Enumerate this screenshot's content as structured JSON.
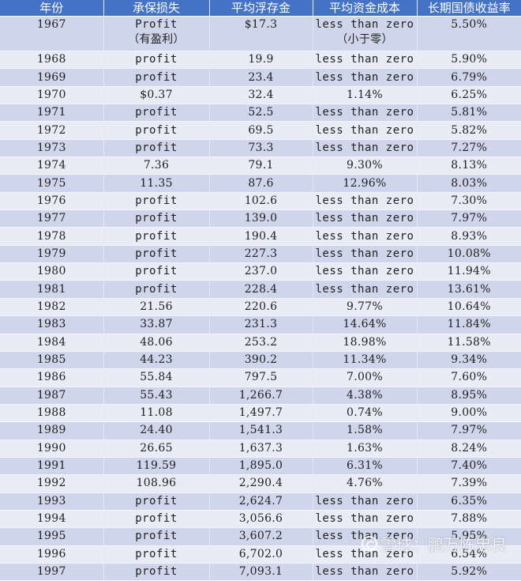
{
  "table": {
    "headers": [
      "年份",
      "承保损失",
      "平均浮存金",
      "平均资金成本",
      "长期国债收益率"
    ],
    "first_row": {
      "year": "1967",
      "underwriting_loss": "Profit",
      "underwriting_loss_note": "（有盈利）",
      "avg_float": "$17.3",
      "cost_of_funds": "less than zero",
      "cost_of_funds_note": "（小于零）",
      "treasury_yield": "5.50%"
    },
    "rows": [
      {
        "year": "1968",
        "underwriting_loss": "profit",
        "avg_float": "19.9",
        "cost_of_funds": "less than zero",
        "treasury_yield": "5.90%"
      },
      {
        "year": "1969",
        "underwriting_loss": "profit",
        "avg_float": "23.4",
        "cost_of_funds": "less than zero",
        "treasury_yield": "6.79%"
      },
      {
        "year": "1970",
        "underwriting_loss": "$0.37",
        "avg_float": "32.4",
        "cost_of_funds": "1.14%",
        "treasury_yield": "6.25%"
      },
      {
        "year": "1971",
        "underwriting_loss": "profit",
        "avg_float": "52.5",
        "cost_of_funds": "less than zero",
        "treasury_yield": "5.81%"
      },
      {
        "year": "1972",
        "underwriting_loss": "profit",
        "avg_float": "69.5",
        "cost_of_funds": "less than zero",
        "treasury_yield": "5.82%"
      },
      {
        "year": "1973",
        "underwriting_loss": "profit",
        "avg_float": "73.3",
        "cost_of_funds": "less than zero",
        "treasury_yield": "7.27%"
      },
      {
        "year": "1974",
        "underwriting_loss": "7.36",
        "avg_float": "79.1",
        "cost_of_funds": "9.30%",
        "treasury_yield": "8.13%"
      },
      {
        "year": "1975",
        "underwriting_loss": "11.35",
        "avg_float": "87.6",
        "cost_of_funds": "12.96%",
        "treasury_yield": "8.03%"
      },
      {
        "year": "1976",
        "underwriting_loss": "profit",
        "avg_float": "102.6",
        "cost_of_funds": "less than zero",
        "treasury_yield": "7.30%"
      },
      {
        "year": "1977",
        "underwriting_loss": "profit",
        "avg_float": "139.0",
        "cost_of_funds": "less than zero",
        "treasury_yield": "7.97%"
      },
      {
        "year": "1978",
        "underwriting_loss": "profit",
        "avg_float": "190.4",
        "cost_of_funds": "less than zero",
        "treasury_yield": "8.93%"
      },
      {
        "year": "1979",
        "underwriting_loss": "profit",
        "avg_float": "227.3",
        "cost_of_funds": "less than zero",
        "treasury_yield": "10.08%"
      },
      {
        "year": "1980",
        "underwriting_loss": "profit",
        "avg_float": "237.0",
        "cost_of_funds": "less than zero",
        "treasury_yield": "11.94%"
      },
      {
        "year": "1981",
        "underwriting_loss": "profit",
        "avg_float": "228.4",
        "cost_of_funds": "less than zero",
        "treasury_yield": "13.61%"
      },
      {
        "year": "1982",
        "underwriting_loss": "21.56",
        "avg_float": "220.6",
        "cost_of_funds": "9.77%",
        "treasury_yield": "10.64%"
      },
      {
        "year": "1983",
        "underwriting_loss": "33.87",
        "avg_float": "231.3",
        "cost_of_funds": "14.64%",
        "treasury_yield": "11.84%"
      },
      {
        "year": "1984",
        "underwriting_loss": "48.06",
        "avg_float": "253.2",
        "cost_of_funds": "18.98%",
        "treasury_yield": "11.58%"
      },
      {
        "year": "1985",
        "underwriting_loss": "44.23",
        "avg_float": "390.2",
        "cost_of_funds": "11.34%",
        "treasury_yield": "9.34%"
      },
      {
        "year": "1986",
        "underwriting_loss": "55.84",
        "avg_float": "797.5",
        "cost_of_funds": "7.00%",
        "treasury_yield": "7.60%"
      },
      {
        "year": "1987",
        "underwriting_loss": "55.43",
        "avg_float": "1,266.7",
        "cost_of_funds": "4.38%",
        "treasury_yield": "8.95%"
      },
      {
        "year": "1988",
        "underwriting_loss": "11.08",
        "avg_float": "1,497.7",
        "cost_of_funds": "0.74%",
        "treasury_yield": "9.00%"
      },
      {
        "year": "1989",
        "underwriting_loss": "24.40",
        "avg_float": "1,541.3",
        "cost_of_funds": "1.58%",
        "treasury_yield": "7.97%"
      },
      {
        "year": "1990",
        "underwriting_loss": "26.65",
        "avg_float": "1,637.3",
        "cost_of_funds": "1.63%",
        "treasury_yield": "8.24%"
      },
      {
        "year": "1991",
        "underwriting_loss": "119.59",
        "avg_float": "1,895.0",
        "cost_of_funds": "6.31%",
        "treasury_yield": "7.40%"
      },
      {
        "year": "1992",
        "underwriting_loss": "108.96",
        "avg_float": "2,290.4",
        "cost_of_funds": "4.76%",
        "treasury_yield": "7.39%"
      },
      {
        "year": "1993",
        "underwriting_loss": "profit",
        "avg_float": "2,624.7",
        "cost_of_funds": "less than zero",
        "treasury_yield": "6.35%"
      },
      {
        "year": "1994",
        "underwriting_loss": "profit",
        "avg_float": "3,056.6",
        "cost_of_funds": "less than zero",
        "treasury_yield": "7.88%"
      },
      {
        "year": "1995",
        "underwriting_loss": "profit",
        "avg_float": "3,607.2",
        "cost_of_funds": "less than zero",
        "treasury_yield": "5.95%"
      },
      {
        "year": "1996",
        "underwriting_loss": "profit",
        "avg_float": "6,702.0",
        "cost_of_funds": "less than zero",
        "treasury_yield": "6.54%"
      },
      {
        "year": "1997",
        "underwriting_loss": "profit",
        "avg_float": "7,093.1",
        "cost_of_funds": "less than zero",
        "treasury_yield": "5.92%"
      }
    ]
  },
  "watermark": {
    "text": "雪球：鹏万陈忠良",
    "icon": "xueqiu-logo-icon"
  },
  "colors": {
    "header_bg": "#4472c4",
    "header_text": "#ffffff",
    "row_odd_bg": "#cfd5ea",
    "row_even_bg": "#e9ebf5"
  }
}
